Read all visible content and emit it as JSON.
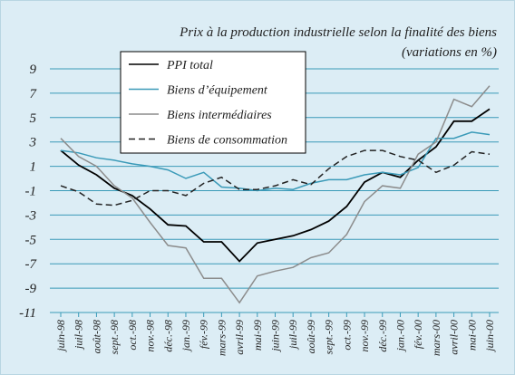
{
  "chart_data": {
    "type": "line",
    "title": "Prix à la production industrielle selon la finalité des biens",
    "subtitle": "(variations en %)",
    "categories": [
      "juin-98",
      "juil-98",
      "août-98",
      "sept.-98",
      "oct.-98",
      "nov.-98",
      "déc.-98",
      "jan.-99",
      "fév.-99",
      "mars-99",
      "avril-99",
      "mai-99",
      "juin-99",
      "juil-99",
      "août-99",
      "sept.-99",
      "oct.-99",
      "nov.-99",
      "déc.-99",
      "jan.-00",
      "fév.-00",
      "mars-00",
      "avril-00",
      "mai-00",
      "juin-00"
    ],
    "series": [
      {
        "name": "PPI total",
        "color": "#000000",
        "dash": false,
        "values": [
          2.3,
          1.1,
          0.3,
          -0.8,
          -1.4,
          -2.5,
          -3.8,
          -3.9,
          -5.2,
          -5.2,
          -6.8,
          -5.3,
          -5.0,
          -4.7,
          -4.2,
          -3.5,
          -2.3,
          -0.3,
          0.5,
          0.1,
          1.5,
          2.6,
          4.7,
          4.7,
          5.7
        ]
      },
      {
        "name": "Biens d’équipement",
        "color": "#3a9ab8",
        "dash": false,
        "values": [
          2.3,
          2.1,
          1.7,
          1.5,
          1.2,
          1.0,
          0.7,
          0.0,
          0.5,
          -0.7,
          -0.8,
          -1.0,
          -0.8,
          -0.9,
          -0.4,
          -0.1,
          -0.1,
          0.3,
          0.5,
          0.3,
          0.9,
          3.3,
          3.3,
          3.8,
          3.6
        ]
      },
      {
        "name": "Biens intermédiaires",
        "color": "#8c8c8c",
        "dash": false,
        "values": [
          3.3,
          1.8,
          1.0,
          -0.6,
          -1.6,
          -3.6,
          -5.5,
          -5.7,
          -8.2,
          -8.2,
          -10.2,
          -8.0,
          -7.6,
          -7.3,
          -6.5,
          -6.1,
          -4.6,
          -1.9,
          -0.6,
          -0.8,
          2.0,
          3.0,
          6.5,
          5.9,
          7.6
        ]
      },
      {
        "name": "Biens de consommation",
        "color": "#222222",
        "dash": true,
        "values": [
          -0.6,
          -1.1,
          -2.1,
          -2.2,
          -1.8,
          -1.0,
          -1.0,
          -1.4,
          -0.4,
          0.1,
          -0.9,
          -0.9,
          -0.6,
          -0.1,
          -0.5,
          0.8,
          1.8,
          2.3,
          2.3,
          1.8,
          1.5,
          0.5,
          1.1,
          2.2,
          2.0
        ]
      }
    ],
    "ylim": [
      -11,
      9
    ],
    "yticks": [
      -11,
      -9,
      -7,
      -5,
      -3,
      -1,
      1,
      3,
      5,
      7,
      9
    ],
    "grid": true,
    "legend": "top-left"
  }
}
